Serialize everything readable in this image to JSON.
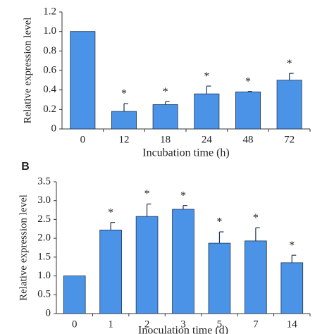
{
  "panel_label": "B",
  "chart_data": [
    {
      "type": "bar",
      "x_label": "Incubation time (h)",
      "y_label": "Relative expression level",
      "categories": [
        "0",
        "12",
        "18",
        "24",
        "48",
        "72"
      ],
      "values": [
        1.0,
        0.18,
        0.25,
        0.36,
        0.38,
        0.5
      ],
      "errors": [
        0,
        0.08,
        0.03,
        0.08,
        0.005,
        0.07
      ],
      "significance": [
        null,
        "*",
        "*",
        "*",
        "*",
        "*"
      ],
      "color": "#4b93e6",
      "ylim": [
        0,
        1.2
      ],
      "yticks": [
        0,
        0.2,
        0.4,
        0.6,
        0.8,
        {
          "value": 1,
          "label": "1.0"
        },
        1.2
      ]
    },
    {
      "type": "bar",
      "x_label": "Inoculation time (d)",
      "y_label": "Relative expression level",
      "categories": [
        "0",
        "1",
        "2",
        "3",
        "5",
        "7",
        "14"
      ],
      "values": [
        1.0,
        2.22,
        2.58,
        2.77,
        1.87,
        1.93,
        1.35
      ],
      "errors": [
        0,
        0.2,
        0.33,
        0.1,
        0.3,
        0.35,
        0.2
      ],
      "significance": [
        null,
        "*",
        "*",
        "*",
        "*",
        "*",
        "*"
      ],
      "color": "#4b93e6",
      "ylim": [
        0,
        3.5
      ],
      "yticks": [
        0,
        0.5,
        {
          "value": 1,
          "label": "1.0"
        },
        1.5,
        {
          "value": 2,
          "label": "2.0"
        },
        2.5,
        {
          "value": 3,
          "label": "3.0"
        },
        3.5
      ]
    }
  ]
}
